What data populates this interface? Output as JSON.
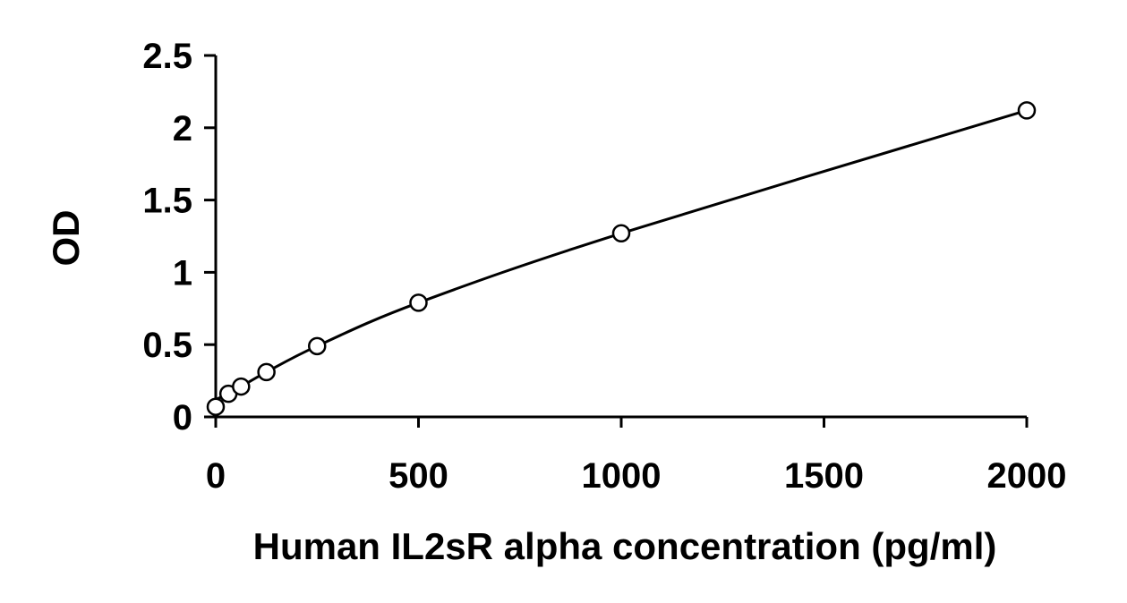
{
  "chart_data": {
    "type": "scatter",
    "title": "",
    "xlabel": "Human IL2sR alpha concentration (pg/ml)",
    "ylabel": "OD",
    "xlim": [
      0,
      2000
    ],
    "ylim": [
      0,
      2.5
    ],
    "x_ticks": [
      0,
      500,
      1000,
      1500,
      2000
    ],
    "y_ticks": [
      0,
      0.5,
      1,
      1.5,
      2,
      2.5
    ],
    "x_tick_labels": [
      "0",
      "500",
      "1000",
      "1500",
      "2000"
    ],
    "y_tick_labels": [
      "0",
      "0.5",
      "1",
      "1.5",
      "2",
      "2.5"
    ],
    "grid": false,
    "legend": "none",
    "series": [
      {
        "marker": "open-circle",
        "x": [
          0,
          31.25,
          62.5,
          125,
          250,
          500,
          1000,
          2000
        ],
        "y": [
          0.07,
          0.16,
          0.21,
          0.31,
          0.49,
          0.79,
          1.27,
          2.12
        ]
      }
    ],
    "fit_curve": true
  }
}
